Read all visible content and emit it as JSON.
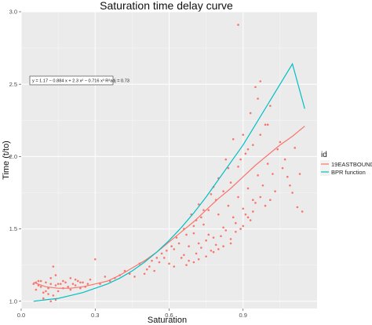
{
  "chart_data": {
    "type": "scatter",
    "title": "Saturation time delay curve",
    "xlabel": "Saturation",
    "ylabel": "Time (t/to)",
    "xlim": [
      0.0,
      1.2
    ],
    "ylim": [
      0.95,
      3.0
    ],
    "x_ticks": [
      "0.0",
      "0.3",
      "0.6",
      "0.9"
    ],
    "y_ticks": [
      "1.0",
      "1.5",
      "2.0",
      "2.5",
      "3.0"
    ],
    "grid": true,
    "legend": {
      "title": "id",
      "position": "right",
      "entries": [
        "19EASTBOUND",
        "BPR function"
      ]
    },
    "annotation": "y = 1.17 − 0.884 x + 2.3 x² − 0.716 x³  R²adj = 0.73",
    "colors": {
      "19EASTBOUND": "#F8766D",
      "BPR function": "#00BFC4",
      "panel": "#EBEBEB",
      "grid": "#FFFFFF"
    },
    "series": [
      {
        "name": "19EASTBOUND",
        "kind": "points",
        "points": [
          [
            0.05,
            1.12
          ],
          [
            0.06,
            1.08
          ],
          [
            0.07,
            1.14
          ],
          [
            0.08,
            1.1
          ],
          [
            0.09,
            1.06
          ],
          [
            0.1,
            1.13
          ],
          [
            0.11,
            1.09
          ],
          [
            0.12,
            1.16
          ],
          [
            0.13,
            1.04
          ],
          [
            0.14,
            1.11
          ],
          [
            0.15,
            1.07
          ],
          [
            0.16,
            1.12
          ],
          [
            0.17,
            1.09
          ],
          [
            0.18,
            1.13
          ],
          [
            0.19,
            1.1
          ],
          [
            0.2,
            1.08
          ],
          [
            0.21,
            1.12
          ],
          [
            0.22,
            1.11
          ],
          [
            0.23,
            1.14
          ],
          [
            0.24,
            1.09
          ],
          [
            0.25,
            1.13
          ],
          [
            0.26,
            1.1
          ],
          [
            0.27,
            1.12
          ],
          [
            0.28,
            1.15
          ],
          [
            0.06,
            1.13
          ],
          [
            0.08,
            1.14
          ],
          [
            0.1,
            1.07
          ],
          [
            0.12,
            1.12
          ],
          [
            0.13,
            1.24
          ],
          [
            0.14,
            1.18
          ],
          [
            0.15,
            1.12
          ],
          [
            0.17,
            1.14
          ],
          [
            0.2,
            1.16
          ],
          [
            0.22,
            1.15
          ],
          [
            0.24,
            1.13
          ],
          [
            0.09,
            1.02
          ],
          [
            0.12,
            1.0
          ],
          [
            0.14,
            1.01
          ],
          [
            0.11,
            1.05
          ],
          [
            0.07,
            1.11
          ],
          [
            0.3,
            1.29
          ],
          [
            0.32,
            1.12
          ],
          [
            0.34,
            1.17
          ],
          [
            0.36,
            1.14
          ],
          [
            0.38,
            1.16
          ],
          [
            0.4,
            1.18
          ],
          [
            0.42,
            1.21
          ],
          [
            0.44,
            1.19
          ],
          [
            0.46,
            1.17
          ],
          [
            0.48,
            1.26
          ],
          [
            0.5,
            1.19
          ],
          [
            0.52,
            1.24
          ],
          [
            0.54,
            1.21
          ],
          [
            0.56,
            1.27
          ],
          [
            0.58,
            1.3
          ],
          [
            0.6,
            1.26
          ],
          [
            0.62,
            1.36
          ],
          [
            0.64,
            1.4
          ],
          [
            0.66,
            1.32
          ],
          [
            0.68,
            1.38
          ],
          [
            0.7,
            1.47
          ],
          [
            0.72,
            1.4
          ],
          [
            0.74,
            1.53
          ],
          [
            0.76,
            1.46
          ],
          [
            0.78,
            1.44
          ],
          [
            0.8,
            1.6
          ],
          [
            0.82,
            1.51
          ],
          [
            0.84,
            1.66
          ],
          [
            0.86,
            1.58
          ],
          [
            0.88,
            1.72
          ],
          [
            0.9,
            1.64
          ],
          [
            0.92,
            1.78
          ],
          [
            0.94,
            1.7
          ],
          [
            0.96,
            1.87
          ],
          [
            0.98,
            1.8
          ],
          [
            1.0,
            1.95
          ],
          [
            1.02,
            1.88
          ],
          [
            1.04,
            2.05
          ],
          [
            1.06,
            1.92
          ],
          [
            1.08,
            1.86
          ],
          [
            0.62,
            1.24
          ],
          [
            0.65,
            1.3
          ],
          [
            0.68,
            1.28
          ],
          [
            0.71,
            1.33
          ],
          [
            0.73,
            1.37
          ],
          [
            0.75,
            1.42
          ],
          [
            0.77,
            1.35
          ],
          [
            0.79,
            1.39
          ],
          [
            0.81,
            1.45
          ],
          [
            0.83,
            1.49
          ],
          [
            0.85,
            1.43
          ],
          [
            0.87,
            1.54
          ],
          [
            0.89,
            1.5
          ],
          [
            0.91,
            1.6
          ],
          [
            0.93,
            1.56
          ],
          [
            0.95,
            1.68
          ],
          [
            0.67,
            1.46
          ],
          [
            0.7,
            1.52
          ],
          [
            0.73,
            1.58
          ],
          [
            0.76,
            1.63
          ],
          [
            0.79,
            1.7
          ],
          [
            0.82,
            1.76
          ],
          [
            0.85,
            1.82
          ],
          [
            0.88,
            1.93
          ],
          [
            0.91,
            2.02
          ],
          [
            0.94,
            2.08
          ],
          [
            0.97,
            2.15
          ],
          [
            1.0,
            2.22
          ],
          [
            0.72,
            1.67
          ],
          [
            0.78,
            1.79
          ],
          [
            0.84,
            1.92
          ],
          [
            0.9,
            2.15
          ],
          [
            0.93,
            2.3
          ],
          [
            0.96,
            2.4
          ],
          [
            0.95,
            2.48
          ],
          [
            0.97,
            2.52
          ],
          [
            0.99,
            2.22
          ],
          [
            1.01,
            2.35
          ],
          [
            0.92,
            2.05
          ],
          [
            0.89,
            1.98
          ],
          [
            0.88,
            2.91
          ],
          [
            0.86,
            2.12
          ],
          [
            0.83,
            1.98
          ],
          [
            0.8,
            1.85
          ],
          [
            0.77,
            1.74
          ],
          [
            0.74,
            1.63
          ],
          [
            0.71,
            1.56
          ],
          [
            0.69,
            1.6
          ],
          [
            0.66,
            1.5
          ],
          [
            0.63,
            1.44
          ],
          [
            0.61,
            1.38
          ],
          [
            0.59,
            1.35
          ],
          [
            0.57,
            1.33
          ],
          [
            0.55,
            1.3
          ],
          [
            0.53,
            1.28
          ],
          [
            0.51,
            1.22
          ],
          [
            1.05,
            2.1
          ],
          [
            1.07,
            1.98
          ],
          [
            1.09,
            1.8
          ],
          [
            1.1,
            1.75
          ],
          [
            1.12,
            1.65
          ],
          [
            1.14,
            1.62
          ],
          [
            1.13,
            1.88
          ],
          [
            1.11,
            2.06
          ],
          [
            1.03,
            1.76
          ],
          [
            1.01,
            1.7
          ],
          [
            0.99,
            1.66
          ],
          [
            0.97,
            1.72
          ],
          [
            0.94,
            1.62
          ],
          [
            0.92,
            1.58
          ],
          [
            0.9,
            1.52
          ],
          [
            0.87,
            1.48
          ],
          [
            0.85,
            1.4
          ],
          [
            0.82,
            1.38
          ],
          [
            0.8,
            1.36
          ],
          [
            0.78,
            1.34
          ],
          [
            0.75,
            1.31
          ],
          [
            0.72,
            1.29
          ],
          [
            0.7,
            1.27
          ],
          [
            0.67,
            1.25
          ]
        ]
      },
      {
        "name": "19EASTBOUND",
        "kind": "fit",
        "x": [
          0.05,
          0.1,
          0.15,
          0.2,
          0.25,
          0.3,
          0.35,
          0.4,
          0.45,
          0.5,
          0.55,
          0.6,
          0.65,
          0.7,
          0.75,
          0.8,
          0.85,
          0.9,
          0.95,
          1.0,
          1.05,
          1.1,
          1.15
        ],
        "y": [
          1.13,
          1.1,
          1.09,
          1.09,
          1.1,
          1.12,
          1.14,
          1.18,
          1.23,
          1.28,
          1.34,
          1.41,
          1.48,
          1.55,
          1.63,
          1.71,
          1.78,
          1.86,
          1.94,
          2.01,
          2.08,
          2.14,
          2.21
        ]
      },
      {
        "name": "BPR function",
        "kind": "line",
        "x": [
          0.05,
          0.1,
          0.15,
          0.2,
          0.25,
          0.3,
          0.35,
          0.4,
          0.45,
          0.5,
          0.55,
          0.6,
          0.65,
          0.7,
          0.75,
          0.8,
          0.85,
          0.9,
          0.95,
          1.0,
          1.05,
          1.1,
          1.15
        ],
        "y": [
          1.0,
          1.01,
          1.02,
          1.04,
          1.06,
          1.09,
          1.12,
          1.16,
          1.21,
          1.27,
          1.34,
          1.42,
          1.51,
          1.61,
          1.72,
          1.84,
          1.96,
          2.08,
          2.22,
          2.36,
          2.5,
          2.64,
          2.33
        ]
      }
    ]
  }
}
